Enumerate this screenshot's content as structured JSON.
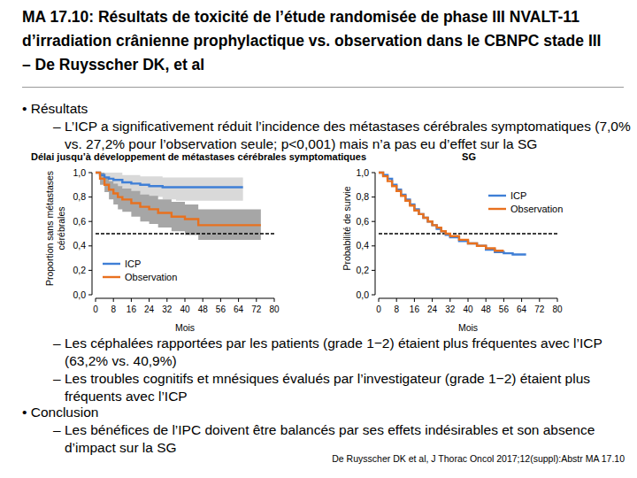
{
  "header": {
    "title": [
      "MA 17.10: Résultats de toxicité de l’étude randomisée de phase III NVALT-11",
      "d’irradiation crânienne prophylactique vs. observation dans le CBNPC stade III",
      "– De Ruysscher DK, et al"
    ]
  },
  "results": {
    "heading": "• Résultats",
    "items": [
      "– L’ICP a significativement réduit l’incidence des métastases cérébrales symptomatiques (7,0% vs. 27,2% pour l’observation seule; p<0,001) mais n’a pas eu d’effet sur la SG"
    ]
  },
  "toxicity": {
    "items": [
      "– Les céphalées rapportées par les patients (grade 1−2) étaient plus fréquentes avec l’ICP (63,2% vs. 40,9%)",
      "– Les troubles cognitifs et mnésiques évalués par l’investigateur (grade 1−2) étaient plus fréquents avec l’ICP"
    ]
  },
  "conclusion": {
    "heading": "• Conclusion",
    "items": [
      "– Les bénéfices de l’IPC doivent être balancés par ses effets indésirables et son absence d’impact sur la SG"
    ]
  },
  "citation": "De Ruysscher DK et al, J Thorac Oncol 2017;12(suppl):Abstr MA 17.10",
  "chart_data": [
    {
      "type": "line",
      "line_style": "step",
      "title": "Délai jusqu’à développement de métastases cérébrales symptomatiques",
      "x_label": "Mois",
      "y_label": "Proportion sans métastases cérébrales",
      "xlim": [
        0,
        80
      ],
      "ylim": [
        0,
        1
      ],
      "xticks": [
        0,
        8,
        16,
        24,
        32,
        40,
        48,
        56,
        64,
        72,
        80
      ],
      "yticks": [
        {
          "value": 0,
          "label": "0,0"
        },
        {
          "value": 0.2,
          "label": "0,2"
        },
        {
          "value": 0.4,
          "label": "0,4"
        },
        {
          "value": 0.6,
          "label": "0,6"
        },
        {
          "value": 0.8,
          "label": "0,8"
        },
        {
          "value": 1,
          "label": "1,0"
        }
      ],
      "reference_y": 0.5,
      "legend": "lower left",
      "series": [
        {
          "name": "ICP",
          "color": "#3f7fd6",
          "x": [
            0,
            2,
            4,
            6,
            8,
            12,
            16,
            20,
            24,
            30,
            36,
            66
          ],
          "values": [
            1,
            0.98,
            0.96,
            0.95,
            0.94,
            0.92,
            0.91,
            0.9,
            0.89,
            0.88,
            0.88,
            0.88
          ],
          "lower": [
            1,
            0.95,
            0.92,
            0.9,
            0.88,
            0.85,
            0.83,
            0.81,
            0.8,
            0.78,
            0.77,
            0.77
          ],
          "upper": [
            1,
            1,
            1,
            1,
            1,
            0.98,
            0.98,
            0.97,
            0.97,
            0.96,
            0.96,
            0.96
          ]
        },
        {
          "name": "Observation",
          "color": "#e8711f",
          "x": [
            0,
            2,
            4,
            6,
            8,
            10,
            12,
            16,
            20,
            24,
            28,
            34,
            40,
            46,
            74
          ],
          "values": [
            1,
            0.95,
            0.9,
            0.86,
            0.83,
            0.8,
            0.78,
            0.75,
            0.72,
            0.7,
            0.67,
            0.64,
            0.62,
            0.57,
            0.57
          ],
          "lower": [
            1,
            0.9,
            0.84,
            0.78,
            0.74,
            0.7,
            0.68,
            0.64,
            0.6,
            0.58,
            0.55,
            0.52,
            0.49,
            0.45,
            0.45
          ],
          "upper": [
            1,
            1,
            0.96,
            0.93,
            0.91,
            0.89,
            0.87,
            0.85,
            0.82,
            0.81,
            0.78,
            0.76,
            0.74,
            0.7,
            0.7
          ]
        }
      ]
    },
    {
      "type": "line",
      "line_style": "step",
      "title": "SG",
      "x_label": "Mois",
      "y_label": "Probabilité de survie",
      "xlim": [
        0,
        80
      ],
      "ylim": [
        0,
        1
      ],
      "xticks": [
        0,
        8,
        16,
        24,
        32,
        40,
        48,
        56,
        64,
        72,
        80
      ],
      "yticks": [
        {
          "value": 0,
          "label": "0,0"
        },
        {
          "value": 0.2,
          "label": "0,2"
        },
        {
          "value": 0.4,
          "label": "0,4"
        },
        {
          "value": 0.6,
          "label": "0,6"
        },
        {
          "value": 0.8,
          "label": "0,8"
        },
        {
          "value": 1,
          "label": "1,0"
        }
      ],
      "reference_y": 0.5,
      "legend": "upper right",
      "series": [
        {
          "name": "ICP",
          "color": "#3f7fd6",
          "x": [
            0,
            2,
            4,
            6,
            8,
            10,
            12,
            14,
            16,
            18,
            20,
            22,
            24,
            26,
            28,
            30,
            32,
            36,
            40,
            44,
            48,
            52,
            56,
            60,
            66
          ],
          "values": [
            1,
            0.98,
            0.95,
            0.9,
            0.86,
            0.82,
            0.78,
            0.74,
            0.7,
            0.66,
            0.63,
            0.6,
            0.57,
            0.54,
            0.52,
            0.49,
            0.47,
            0.44,
            0.42,
            0.4,
            0.37,
            0.35,
            0.34,
            0.33,
            0.33
          ]
        },
        {
          "name": "Observation",
          "color": "#e8711f",
          "x": [
            0,
            2,
            4,
            6,
            8,
            10,
            12,
            14,
            16,
            18,
            20,
            22,
            24,
            26,
            28,
            30,
            32,
            36,
            40,
            44,
            48,
            52,
            56
          ],
          "values": [
            1,
            0.97,
            0.93,
            0.89,
            0.85,
            0.81,
            0.77,
            0.73,
            0.69,
            0.66,
            0.63,
            0.6,
            0.57,
            0.55,
            0.52,
            0.5,
            0.48,
            0.45,
            0.42,
            0.4,
            0.38,
            0.36,
            0.36
          ]
        }
      ]
    }
  ]
}
